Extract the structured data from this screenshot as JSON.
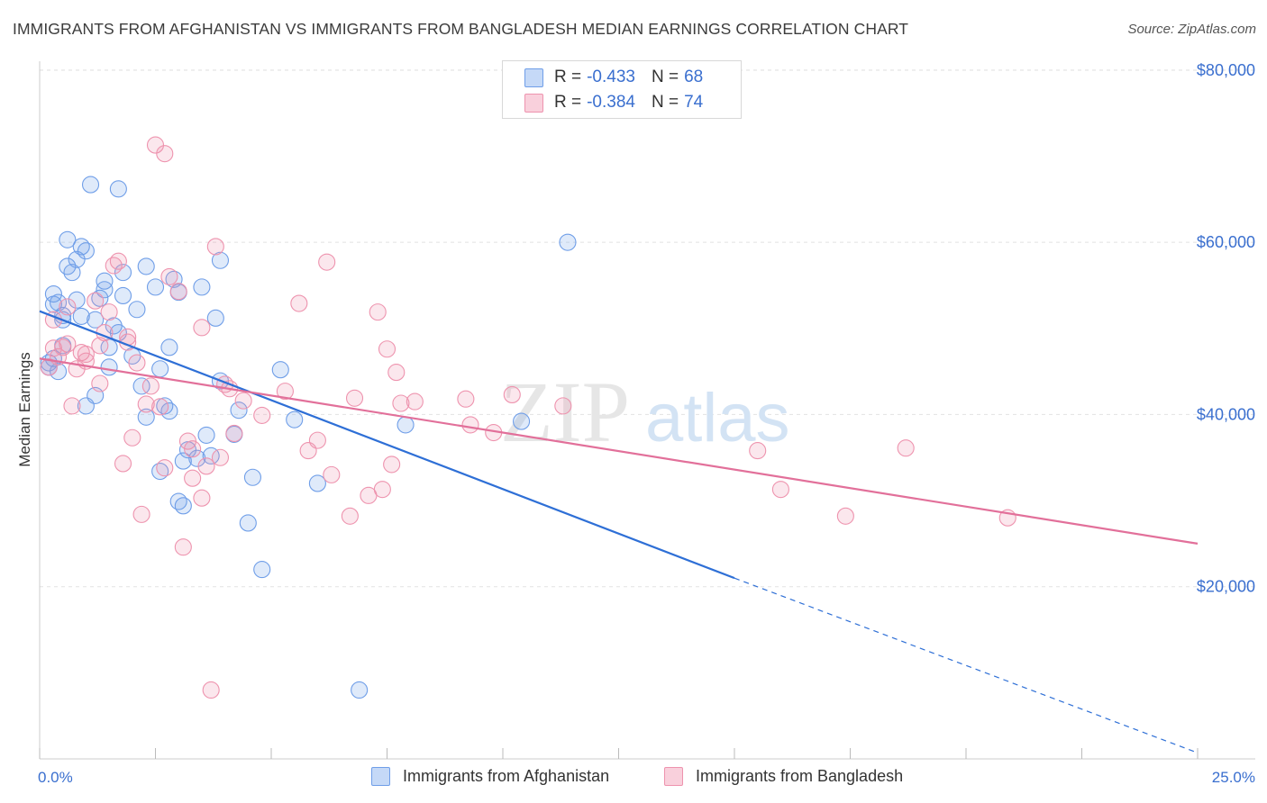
{
  "title": "IMMIGRANTS FROM AFGHANISTAN VS IMMIGRANTS FROM BANGLADESH MEDIAN EARNINGS CORRELATION CHART",
  "source": "Source: ZipAtlas.com",
  "watermark": {
    "zip": "ZIP",
    "atlas": "atlas"
  },
  "legend": {
    "r_label": "R =",
    "n_label": "N =",
    "rows": [
      {
        "r": "-0.433",
        "n": "68",
        "color": "#6f9ee8"
      },
      {
        "r": "-0.384",
        "n": "74",
        "color": "#ee93ae"
      }
    ]
  },
  "chart_data": {
    "type": "scatter",
    "title": "IMMIGRANTS FROM AFGHANISTAN VS IMMIGRANTS FROM BANGLADESH MEDIAN EARNINGS CORRELATION CHART",
    "xlabel": "",
    "ylabel": "Median Earnings",
    "xlim": [
      0,
      25
    ],
    "ylim": [
      0,
      82000
    ],
    "x_tick_labels": {
      "left": "0.0%",
      "right": "25.0%"
    },
    "y_ticks": [
      {
        "value": 20000,
        "label": "$20,000"
      },
      {
        "value": 40000,
        "label": "$40,000"
      },
      {
        "value": 60000,
        "label": "$60,000"
      },
      {
        "value": 80000,
        "label": "$80,000"
      }
    ],
    "grid": true,
    "series": [
      {
        "name": "Immigrants from Afghanistan",
        "color": "#6f9ee8",
        "trend": {
          "x0": 0,
          "y0": 52000,
          "x1": 15,
          "y1": 21000,
          "dash_to_x": 25,
          "dash_to_y": 700
        },
        "points": [
          [
            0.2,
            45500
          ],
          [
            0.3,
            54000
          ],
          [
            0.3,
            46500
          ],
          [
            0.4,
            53000
          ],
          [
            0.4,
            45000
          ],
          [
            0.5,
            51000
          ],
          [
            0.5,
            51500
          ],
          [
            0.6,
            60300
          ],
          [
            0.6,
            57200
          ],
          [
            0.7,
            56500
          ],
          [
            0.8,
            53300
          ],
          [
            0.8,
            58000
          ],
          [
            0.9,
            51400
          ],
          [
            0.9,
            59500
          ],
          [
            1.0,
            41000
          ],
          [
            1.0,
            59000
          ],
          [
            1.1,
            66700
          ],
          [
            1.2,
            51000
          ],
          [
            1.2,
            42200
          ],
          [
            1.3,
            53500
          ],
          [
            1.4,
            55500
          ],
          [
            1.4,
            54500
          ],
          [
            1.5,
            47800
          ],
          [
            1.5,
            45500
          ],
          [
            1.6,
            50300
          ],
          [
            1.7,
            66200
          ],
          [
            1.7,
            49500
          ],
          [
            1.8,
            53800
          ],
          [
            1.8,
            56500
          ],
          [
            2.0,
            46800
          ],
          [
            2.1,
            52200
          ],
          [
            2.2,
            43300
          ],
          [
            2.3,
            57200
          ],
          [
            2.3,
            39700
          ],
          [
            2.5,
            54800
          ],
          [
            2.6,
            33400
          ],
          [
            2.6,
            45300
          ],
          [
            2.7,
            41000
          ],
          [
            2.8,
            47800
          ],
          [
            2.8,
            40400
          ],
          [
            2.9,
            55700
          ],
          [
            3.0,
            54200
          ],
          [
            3.0,
            29900
          ],
          [
            3.1,
            34600
          ],
          [
            3.1,
            29400
          ],
          [
            3.2,
            35900
          ],
          [
            3.4,
            34900
          ],
          [
            3.5,
            54800
          ],
          [
            3.6,
            37600
          ],
          [
            3.7,
            35200
          ],
          [
            3.8,
            51200
          ],
          [
            3.9,
            43900
          ],
          [
            3.9,
            57900
          ],
          [
            4.2,
            37700
          ],
          [
            4.3,
            40500
          ],
          [
            4.5,
            27400
          ],
          [
            4.6,
            32700
          ],
          [
            4.8,
            22000
          ],
          [
            5.2,
            45200
          ],
          [
            5.5,
            39400
          ],
          [
            6.0,
            32000
          ],
          [
            6.9,
            8000
          ],
          [
            7.9,
            38800
          ],
          [
            10.4,
            39200
          ],
          [
            11.4,
            60000
          ],
          [
            0.2,
            46000
          ],
          [
            0.3,
            52800
          ],
          [
            0.5,
            48000
          ]
        ]
      },
      {
        "name": "Immigrants from Bangladesh",
        "color": "#ee93ae",
        "trend": {
          "x0": 0,
          "y0": 46500,
          "x1": 25,
          "y1": 25000
        },
        "points": [
          [
            0.2,
            45500
          ],
          [
            0.3,
            47700
          ],
          [
            0.3,
            51000
          ],
          [
            0.4,
            46700
          ],
          [
            0.5,
            47800
          ],
          [
            0.6,
            52500
          ],
          [
            0.6,
            48200
          ],
          [
            0.7,
            41000
          ],
          [
            0.8,
            45300
          ],
          [
            0.9,
            47200
          ],
          [
            1.0,
            47000
          ],
          [
            1.0,
            46200
          ],
          [
            1.2,
            53200
          ],
          [
            1.3,
            43600
          ],
          [
            1.3,
            48000
          ],
          [
            1.4,
            49500
          ],
          [
            1.5,
            51900
          ],
          [
            1.6,
            57300
          ],
          [
            1.7,
            57800
          ],
          [
            1.8,
            34300
          ],
          [
            1.9,
            49000
          ],
          [
            1.9,
            48400
          ],
          [
            2.0,
            37300
          ],
          [
            2.1,
            46000
          ],
          [
            2.2,
            28400
          ],
          [
            2.3,
            41200
          ],
          [
            2.4,
            43300
          ],
          [
            2.5,
            71300
          ],
          [
            2.6,
            40900
          ],
          [
            2.7,
            70300
          ],
          [
            2.7,
            33800
          ],
          [
            2.8,
            56000
          ],
          [
            3.0,
            54300
          ],
          [
            3.1,
            24600
          ],
          [
            3.2,
            36900
          ],
          [
            3.3,
            36000
          ],
          [
            3.3,
            32600
          ],
          [
            3.5,
            50100
          ],
          [
            3.5,
            30300
          ],
          [
            3.6,
            34000
          ],
          [
            3.7,
            8000
          ],
          [
            3.8,
            59500
          ],
          [
            3.9,
            35000
          ],
          [
            4.0,
            43500
          ],
          [
            4.1,
            43000
          ],
          [
            4.2,
            37800
          ],
          [
            4.4,
            41600
          ],
          [
            4.8,
            39900
          ],
          [
            5.3,
            42700
          ],
          [
            5.6,
            52900
          ],
          [
            5.8,
            35800
          ],
          [
            6.0,
            37000
          ],
          [
            6.2,
            57700
          ],
          [
            6.3,
            33000
          ],
          [
            6.7,
            28200
          ],
          [
            6.8,
            41900
          ],
          [
            7.1,
            30600
          ],
          [
            7.3,
            51900
          ],
          [
            7.4,
            31300
          ],
          [
            7.5,
            47600
          ],
          [
            7.6,
            34200
          ],
          [
            7.7,
            44900
          ],
          [
            7.8,
            41300
          ],
          [
            8.1,
            41500
          ],
          [
            9.2,
            41800
          ],
          [
            9.3,
            38800
          ],
          [
            9.8,
            37900
          ],
          [
            10.2,
            42300
          ],
          [
            11.3,
            41000
          ],
          [
            15.5,
            35800
          ],
          [
            16.0,
            31300
          ],
          [
            17.4,
            28200
          ],
          [
            18.7,
            36100
          ],
          [
            20.9,
            28000
          ]
        ]
      }
    ]
  }
}
